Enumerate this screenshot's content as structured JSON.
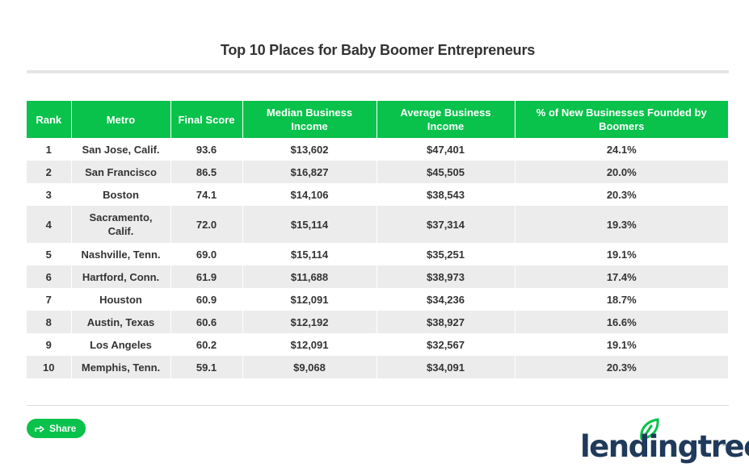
{
  "title": "Top 10 Places for Baby Boomer Entrepreneurs",
  "share_label": "Share",
  "brand": {
    "logo_text": "lendingtree",
    "registered": "®",
    "accent": "#08c24b",
    "logo_color": "#1f3a5a"
  },
  "chart_data": {
    "type": "table",
    "title": "Top 10 Places for Baby Boomer Entrepreneurs",
    "columns": [
      "Rank",
      "Metro",
      "Final Score",
      "Median Business Income",
      "Average Business Income",
      "% of New Businesses Founded by Boomers"
    ],
    "rows": [
      [
        "1",
        "San Jose, Calif.",
        "93.6",
        "$13,602",
        "$47,401",
        "24.1%"
      ],
      [
        "2",
        "San Francisco",
        "86.5",
        "$16,827",
        "$45,505",
        "20.0%"
      ],
      [
        "3",
        "Boston",
        "74.1",
        "$14,106",
        "$38,543",
        "20.3%"
      ],
      [
        "4",
        "Sacramento, Calif.",
        "72.0",
        "$15,114",
        "$37,314",
        "19.3%"
      ],
      [
        "5",
        "Nashville, Tenn.",
        "69.0",
        "$15,114",
        "$35,251",
        "19.1%"
      ],
      [
        "6",
        "Hartford, Conn.",
        "61.9",
        "$11,688",
        "$38,973",
        "17.4%"
      ],
      [
        "7",
        "Houston",
        "60.9",
        "$12,091",
        "$34,236",
        "18.7%"
      ],
      [
        "8",
        "Austin, Texas",
        "60.6",
        "$12,192",
        "$38,927",
        "16.6%"
      ],
      [
        "9",
        "Los Angeles",
        "60.2",
        "$12,091",
        "$32,567",
        "19.1%"
      ],
      [
        "10",
        "Memphis, Tenn.",
        "59.1",
        "$9,068",
        "$34,091",
        "20.3%"
      ]
    ]
  }
}
